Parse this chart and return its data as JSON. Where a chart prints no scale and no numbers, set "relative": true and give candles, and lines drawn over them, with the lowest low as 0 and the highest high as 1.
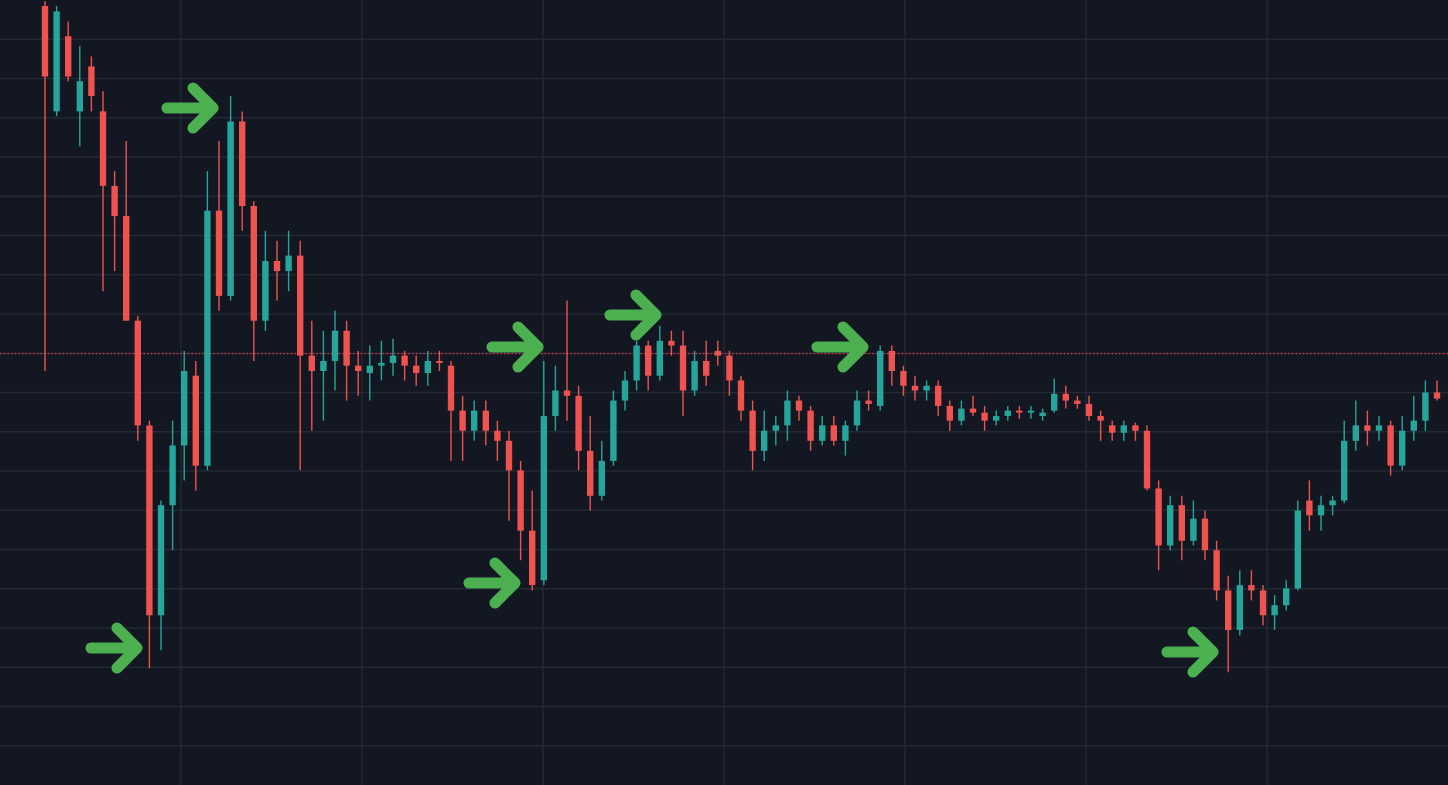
{
  "chart_data": {
    "type": "candlestick",
    "relative": true,
    "grid": true,
    "categories": [
      null,
      null,
      null,
      null,
      null,
      null,
      null,
      null,
      null,
      null,
      null,
      null,
      null,
      null,
      null,
      null,
      null,
      null,
      null,
      null,
      null,
      null,
      null,
      null,
      null,
      null,
      null,
      null,
      null,
      null,
      null,
      null,
      null,
      null,
      null,
      null,
      null,
      null,
      null,
      null,
      null,
      null,
      null,
      null,
      null,
      null,
      null,
      null,
      null,
      null,
      null,
      null,
      null,
      null,
      null,
      null,
      null,
      null,
      null,
      null,
      null,
      null,
      null,
      null,
      null,
      null,
      null,
      null,
      null,
      null,
      null,
      null,
      null,
      null,
      null,
      null,
      null,
      null,
      null,
      null,
      null,
      null,
      null,
      null,
      null,
      null,
      null,
      null,
      null,
      null,
      null,
      null,
      null,
      null,
      null,
      null,
      null,
      null,
      null,
      null,
      null,
      null,
      null,
      null,
      null,
      null,
      null,
      null,
      null,
      null,
      null,
      null,
      null,
      null,
      null,
      null,
      null,
      null,
      null,
      null,
      null
    ],
    "ohlc": [
      [
        0.993,
        1.0,
        0.449,
        0.888
      ],
      [
        0.836,
        0.993,
        0.829,
        0.985
      ],
      [
        0.948,
        0.97,
        0.881,
        0.888
      ],
      [
        0.836,
        0.933,
        0.784,
        0.881
      ],
      [
        0.903,
        0.918,
        0.836,
        0.859
      ],
      [
        0.836,
        0.866,
        0.568,
        0.725
      ],
      [
        0.725,
        0.747,
        0.598,
        0.68
      ],
      [
        0.68,
        0.792,
        0.524,
        0.524
      ],
      [
        0.524,
        0.531,
        0.345,
        0.368
      ],
      [
        0.368,
        0.375,
        0.006,
        0.085
      ],
      [
        0.085,
        0.256,
        0.033,
        0.249
      ],
      [
        0.249,
        0.375,
        0.182,
        0.338
      ],
      [
        0.338,
        0.479,
        0.286,
        0.449
      ],
      [
        0.442,
        0.464,
        0.271,
        0.308
      ],
      [
        0.308,
        0.747,
        0.301,
        0.688
      ],
      [
        0.688,
        0.792,
        0.539,
        0.561
      ],
      [
        0.561,
        0.859,
        0.554,
        0.821
      ],
      [
        0.821,
        0.836,
        0.658,
        0.695
      ],
      [
        0.695,
        0.702,
        0.464,
        0.524
      ],
      [
        0.524,
        0.658,
        0.509,
        0.613
      ],
      [
        0.613,
        0.643,
        0.554,
        0.598
      ],
      [
        0.598,
        0.658,
        0.568,
        0.621
      ],
      [
        0.621,
        0.643,
        0.301,
        0.472
      ],
      [
        0.472,
        0.524,
        0.36,
        0.449
      ],
      [
        0.449,
        0.509,
        0.375,
        0.464
      ],
      [
        0.464,
        0.539,
        0.42,
        0.509
      ],
      [
        0.509,
        0.524,
        0.405,
        0.457
      ],
      [
        0.457,
        0.479,
        0.412,
        0.449
      ],
      [
        0.446,
        0.487,
        0.405,
        0.457
      ],
      [
        0.457,
        0.494,
        0.435,
        0.461
      ],
      [
        0.461,
        0.497,
        0.442,
        0.472
      ],
      [
        0.472,
        0.479,
        0.435,
        0.457
      ],
      [
        0.457,
        0.472,
        0.427,
        0.446
      ],
      [
        0.446,
        0.479,
        0.427,
        0.464
      ],
      [
        0.464,
        0.479,
        0.449,
        0.461
      ],
      [
        0.457,
        0.464,
        0.315,
        0.39
      ],
      [
        0.39,
        0.412,
        0.315,
        0.36
      ],
      [
        0.36,
        0.405,
        0.345,
        0.39
      ],
      [
        0.39,
        0.405,
        0.338,
        0.36
      ],
      [
        0.36,
        0.375,
        0.315,
        0.345
      ],
      [
        0.345,
        0.36,
        0.226,
        0.301
      ],
      [
        0.301,
        0.315,
        0.167,
        0.211
      ],
      [
        0.211,
        0.271,
        0.122,
        0.13
      ],
      [
        0.137,
        0.464,
        0.13,
        0.382
      ],
      [
        0.382,
        0.457,
        0.36,
        0.42
      ],
      [
        0.42,
        0.554,
        0.375,
        0.412
      ],
      [
        0.412,
        0.427,
        0.301,
        0.33
      ],
      [
        0.33,
        0.382,
        0.241,
        0.263
      ],
      [
        0.263,
        0.345,
        0.256,
        0.315
      ],
      [
        0.315,
        0.42,
        0.308,
        0.405
      ],
      [
        0.405,
        0.449,
        0.39,
        0.435
      ],
      [
        0.435,
        0.494,
        0.42,
        0.487
      ],
      [
        0.487,
        0.494,
        0.42,
        0.442
      ],
      [
        0.442,
        0.516,
        0.435,
        0.494
      ],
      [
        0.494,
        0.509,
        0.472,
        0.487
      ],
      [
        0.487,
        0.509,
        0.382,
        0.42
      ],
      [
        0.42,
        0.479,
        0.412,
        0.464
      ],
      [
        0.464,
        0.494,
        0.427,
        0.442
      ],
      [
        0.479,
        0.494,
        0.457,
        0.472
      ],
      [
        0.472,
        0.479,
        0.412,
        0.435
      ],
      [
        0.435,
        0.442,
        0.375,
        0.39
      ],
      [
        0.39,
        0.405,
        0.301,
        0.33
      ],
      [
        0.33,
        0.39,
        0.315,
        0.36
      ],
      [
        0.36,
        0.382,
        0.338,
        0.368
      ],
      [
        0.368,
        0.42,
        0.345,
        0.405
      ],
      [
        0.405,
        0.412,
        0.375,
        0.39
      ],
      [
        0.39,
        0.397,
        0.33,
        0.345
      ],
      [
        0.345,
        0.382,
        0.338,
        0.368
      ],
      [
        0.368,
        0.382,
        0.338,
        0.345
      ],
      [
        0.345,
        0.375,
        0.323,
        0.368
      ],
      [
        0.368,
        0.42,
        0.36,
        0.405
      ],
      [
        0.405,
        0.42,
        0.39,
        0.4
      ],
      [
        0.397,
        0.487,
        0.39,
        0.479
      ],
      [
        0.479,
        0.487,
        0.427,
        0.449
      ],
      [
        0.449,
        0.457,
        0.412,
        0.427
      ],
      [
        0.427,
        0.442,
        0.405,
        0.42
      ],
      [
        0.42,
        0.435,
        0.405,
        0.427
      ],
      [
        0.427,
        0.435,
        0.382,
        0.397
      ],
      [
        0.397,
        0.405,
        0.36,
        0.375
      ],
      [
        0.375,
        0.405,
        0.368,
        0.393
      ],
      [
        0.393,
        0.412,
        0.382,
        0.387
      ],
      [
        0.387,
        0.397,
        0.36,
        0.375
      ],
      [
        0.375,
        0.39,
        0.368,
        0.382
      ],
      [
        0.382,
        0.397,
        0.375,
        0.39
      ],
      [
        0.39,
        0.397,
        0.378,
        0.387
      ],
      [
        0.387,
        0.397,
        0.378,
        0.39
      ],
      [
        0.382,
        0.393,
        0.375,
        0.387
      ],
      [
        0.39,
        0.438,
        0.387,
        0.415
      ],
      [
        0.415,
        0.427,
        0.393,
        0.405
      ],
      [
        0.405,
        0.412,
        0.393,
        0.4
      ],
      [
        0.4,
        0.412,
        0.375,
        0.382
      ],
      [
        0.382,
        0.39,
        0.345,
        0.375
      ],
      [
        0.368,
        0.375,
        0.345,
        0.357
      ],
      [
        0.357,
        0.375,
        0.345,
        0.368
      ],
      [
        0.368,
        0.372,
        0.345,
        0.36
      ],
      [
        0.36,
        0.368,
        0.271,
        0.274
      ],
      [
        0.274,
        0.286,
        0.152,
        0.189
      ],
      [
        0.189,
        0.263,
        0.182,
        0.249
      ],
      [
        0.249,
        0.263,
        0.167,
        0.196
      ],
      [
        0.196,
        0.256,
        0.189,
        0.229
      ],
      [
        0.229,
        0.241,
        0.167,
        0.182
      ],
      [
        0.182,
        0.196,
        0.107,
        0.122
      ],
      [
        0.122,
        0.144,
        0.0,
        0.063
      ],
      [
        0.063,
        0.152,
        0.055,
        0.13
      ],
      [
        0.13,
        0.152,
        0.107,
        0.122
      ],
      [
        0.122,
        0.13,
        0.07,
        0.085
      ],
      [
        0.085,
        0.115,
        0.063,
        0.1
      ],
      [
        0.1,
        0.137,
        0.092,
        0.125
      ],
      [
        0.125,
        0.256,
        0.122,
        0.241
      ],
      [
        0.256,
        0.286,
        0.211,
        0.234
      ],
      [
        0.234,
        0.263,
        0.211,
        0.249
      ],
      [
        0.249,
        0.263,
        0.234,
        0.256
      ],
      [
        0.256,
        0.375,
        0.252,
        0.345
      ],
      [
        0.345,
        0.405,
        0.33,
        0.368
      ],
      [
        0.368,
        0.39,
        0.338,
        0.36
      ],
      [
        0.36,
        0.382,
        0.345,
        0.368
      ],
      [
        0.368,
        0.375,
        0.293,
        0.308
      ],
      [
        0.308,
        0.382,
        0.301,
        0.36
      ],
      [
        0.36,
        0.412,
        0.345,
        0.375
      ],
      [
        0.375,
        0.435,
        0.36,
        0.417
      ],
      [
        0.417,
        0.435,
        0.405,
        0.408
      ]
    ],
    "ref_lines": [
      {
        "axis": "y",
        "value": 0.475,
        "color": "#f23645",
        "line_style": "dotted"
      }
    ]
  }
}
